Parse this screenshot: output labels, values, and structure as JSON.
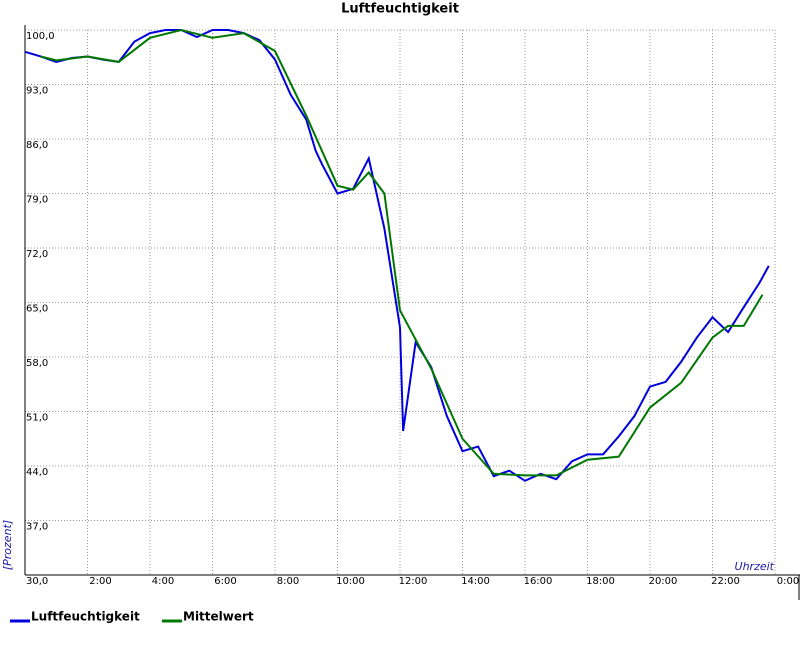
{
  "chart_data": {
    "type": "line",
    "title": "Luftfeuchtigkeit",
    "y_label": "[Prozent]",
    "x_label": "Uhrzeit",
    "xlim": [
      0,
      24
    ],
    "ylim": [
      30,
      100
    ],
    "xticks": [
      {
        "value": 2,
        "label": "2:00"
      },
      {
        "value": 4,
        "label": "4:00"
      },
      {
        "value": 6,
        "label": "6:00"
      },
      {
        "value": 8,
        "label": "8:00"
      },
      {
        "value": 10,
        "label": "10:00"
      },
      {
        "value": 12,
        "label": "12:00"
      },
      {
        "value": 14,
        "label": "14:00"
      },
      {
        "value": 16,
        "label": "16:00"
      },
      {
        "value": 18,
        "label": "18:00"
      },
      {
        "value": 20,
        "label": "20:00"
      },
      {
        "value": 22,
        "label": "22:00"
      },
      {
        "value": 24,
        "label": "0:00"
      }
    ],
    "yticks": [
      {
        "value": 30,
        "label": "30,0"
      },
      {
        "value": 37,
        "label": "37,0"
      },
      {
        "value": 44,
        "label": "44,0"
      },
      {
        "value": 51,
        "label": "51,0"
      },
      {
        "value": 58,
        "label": "58,0"
      },
      {
        "value": 65,
        "label": "65,0"
      },
      {
        "value": 72,
        "label": "72,0"
      },
      {
        "value": 79,
        "label": "79,0"
      },
      {
        "value": 86,
        "label": "86,0"
      },
      {
        "value": 93,
        "label": "93,0"
      },
      {
        "value": 100,
        "label": "100,0"
      }
    ],
    "grid": true,
    "series": [
      {
        "name": "Luftfeuchtigkeit",
        "color": "#0000dd",
        "x": [
          0,
          0.5,
          1,
          1.5,
          2,
          2.5,
          3,
          3.5,
          4,
          4.5,
          5,
          5.5,
          6,
          6.5,
          7,
          7.5,
          8,
          8.5,
          9,
          9.3,
          9.5,
          10,
          10.5,
          11,
          11.5,
          12,
          12.1,
          12.5,
          13,
          13.5,
          14,
          14.5,
          15,
          15.5,
          16,
          16.5,
          17,
          17.5,
          18,
          18.5,
          19,
          19.5,
          20,
          20.5,
          21,
          21.5,
          22,
          22.5,
          23,
          23.5,
          23.8
        ],
        "values": [
          97.2,
          96.6,
          95.9,
          96.4,
          96.6,
          96.2,
          95.9,
          98.5,
          99.6,
          100,
          100,
          99.1,
          100,
          100,
          99.6,
          98.7,
          96.2,
          91.7,
          88.5,
          84.5,
          82.8,
          79,
          79.6,
          83.5,
          74.5,
          61.8,
          48.5,
          59.9,
          56.7,
          50.4,
          45.9,
          46.5,
          42.7,
          43.4,
          42.1,
          43,
          42.3,
          44.6,
          45.5,
          45.5,
          47.8,
          50.4,
          54.2,
          54.8,
          57.4,
          60.5,
          63.1,
          61.2,
          64.4,
          67.5,
          69.7
        ]
      },
      {
        "name": "Mittelwert",
        "color": "#007700",
        "x": [
          0.5,
          1,
          2,
          3,
          4,
          5,
          6,
          7,
          8,
          9,
          10,
          10.5,
          11,
          11.5,
          12,
          13,
          14,
          15,
          16,
          17,
          18,
          19,
          20,
          21,
          22,
          22.5,
          23,
          23.6
        ],
        "values": [
          96.6,
          96.1,
          96.6,
          95.9,
          99,
          100,
          99,
          99.6,
          97.3,
          89,
          80,
          79.5,
          81.7,
          79,
          64,
          56.5,
          47.5,
          43,
          42.8,
          42.8,
          44.8,
          45.2,
          51.5,
          54.7,
          60.5,
          62,
          62,
          66
        ]
      }
    ]
  }
}
